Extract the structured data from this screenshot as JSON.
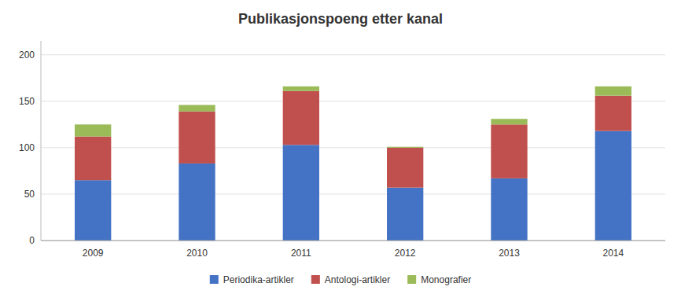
{
  "chart_data": {
    "type": "bar",
    "stacked": true,
    "title": "Publikasjonspoeng etter kanal",
    "categories": [
      "2009",
      "2010",
      "2011",
      "2012",
      "2013",
      "2014"
    ],
    "series": [
      {
        "name": "Periodika-artikler",
        "color": "#4472C4",
        "values": [
          65,
          83,
          103,
          57,
          67,
          118
        ]
      },
      {
        "name": "Antologi-artikler",
        "color": "#C0504D",
        "values": [
          47,
          56,
          58,
          43,
          58,
          38
        ]
      },
      {
        "name": "Monografier",
        "color": "#9BBB59",
        "values": [
          13,
          7,
          5,
          1,
          6,
          10
        ]
      }
    ],
    "ylim": [
      0,
      215
    ],
    "yticks": [
      0,
      50,
      100,
      150,
      200
    ],
    "grid": true,
    "legend": "bottom"
  }
}
